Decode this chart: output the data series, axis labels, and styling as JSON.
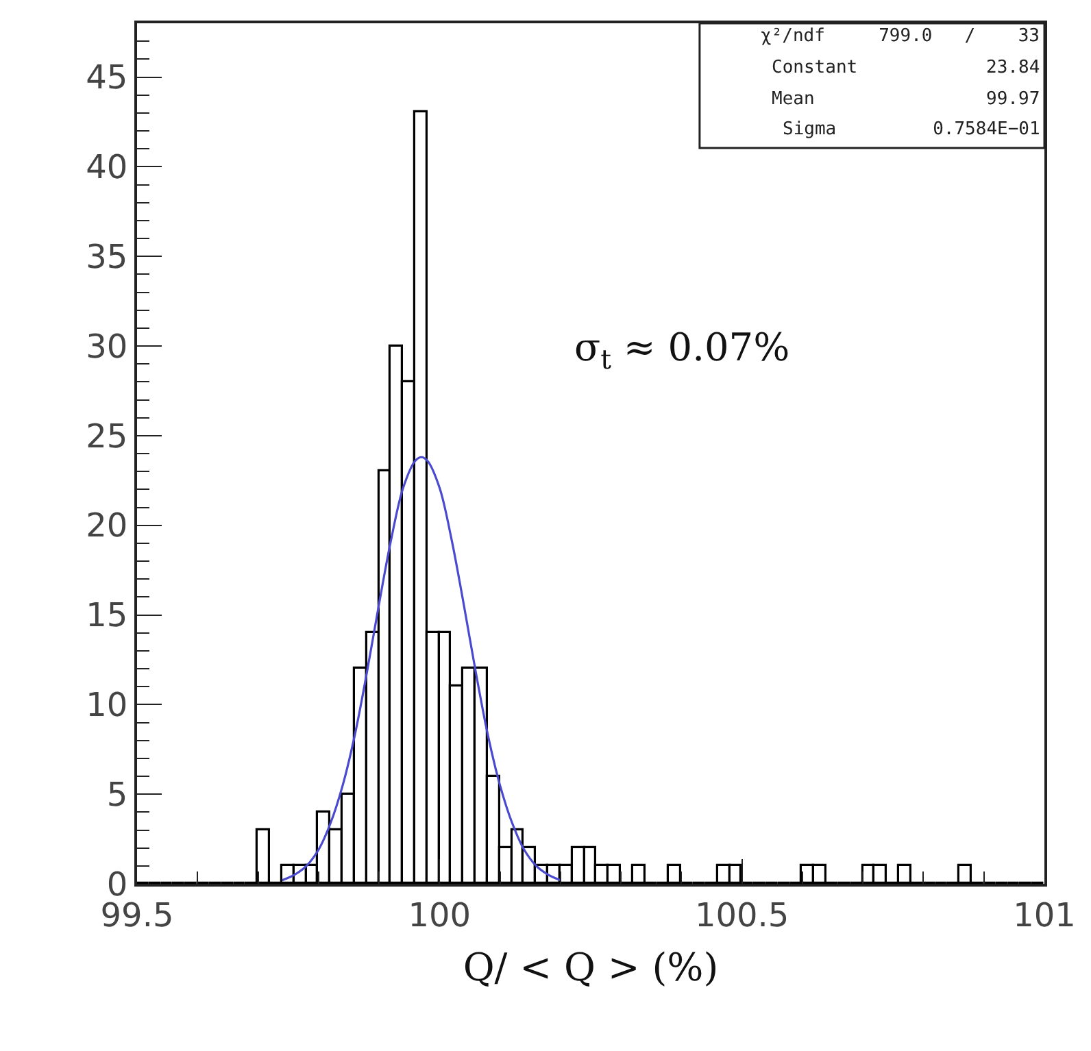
{
  "chart_data": {
    "type": "histogram",
    "xlabel": "Q/ < Q > (%)",
    "xlim": [
      99.5,
      101
    ],
    "xticks": [
      99.5,
      100,
      100.5,
      101
    ],
    "ylim": [
      0,
      48
    ],
    "yticks": [
      0,
      5,
      10,
      15,
      20,
      25,
      30,
      35,
      40,
      45
    ],
    "annotations": [
      "χ²/ndf     799.0   /    33",
      "Constant            23.84",
      "Mean                99.97",
      "Sigma         0.7584E−01",
      "σ$_{t}$ ≈ 0.07%"
    ],
    "series": [
      {
        "color": "#000000",
        "bins": [
          99.5,
          99.52,
          99.54,
          99.56,
          99.58,
          99.6,
          99.62,
          99.64,
          99.66,
          99.68,
          99.7,
          99.72,
          99.74,
          99.76,
          99.78,
          99.8,
          99.82,
          99.84,
          99.86,
          99.88,
          99.9,
          99.92,
          99.94,
          99.96,
          99.98,
          100.0,
          100.02,
          100.04,
          100.06,
          100.08,
          100.1,
          100.12,
          100.14,
          100.16,
          100.18,
          100.2,
          100.22,
          100.24,
          100.26,
          100.28,
          100.3,
          100.32,
          100.34,
          100.36,
          100.38,
          100.4,
          100.42,
          100.44,
          100.46,
          100.48,
          100.5,
          100.52,
          100.54,
          100.56,
          100.58,
          100.6,
          100.62,
          100.64,
          100.66,
          100.68,
          100.7,
          100.72,
          100.74,
          100.76,
          100.78,
          100.8,
          100.82,
          100.84,
          100.86,
          100.88,
          100.9,
          100.92,
          100.94,
          100.96,
          100.98,
          101.0
        ],
        "values": [
          0,
          0,
          0,
          0,
          0,
          0,
          0,
          0,
          0,
          0,
          3,
          0,
          1,
          1,
          1,
          4,
          3,
          5,
          12,
          14,
          23,
          30,
          28,
          43,
          14,
          14,
          11,
          12,
          12,
          6,
          2,
          3,
          2,
          1,
          1,
          1,
          2,
          2,
          1,
          1,
          0,
          1,
          0,
          0,
          1,
          0,
          0,
          0,
          1,
          1,
          0,
          0,
          0,
          0,
          0,
          1,
          1,
          0,
          0,
          0,
          1,
          1,
          0,
          1,
          0,
          0,
          0,
          0,
          1,
          0,
          0,
          0,
          0,
          0,
          0
        ]
      },
      {
        "type": "line",
        "color": "#4a4ad0",
        "x": [
          99.74,
          99.76,
          99.78,
          99.8,
          99.82,
          99.84,
          99.86,
          99.88,
          99.9,
          99.92,
          99.94,
          99.96,
          99.97,
          99.98,
          100.0,
          100.02,
          100.04,
          100.06,
          100.08,
          100.1,
          100.12,
          100.14,
          100.16,
          100.18,
          100.2
        ],
        "values": [
          0.2,
          0.5,
          1.0,
          1.9,
          3.4,
          5.5,
          8.3,
          11.8,
          15.6,
          19.2,
          22.1,
          23.6,
          23.8,
          23.6,
          22.1,
          19.2,
          15.6,
          11.8,
          8.3,
          5.5,
          3.4,
          1.9,
          1.0,
          0.5,
          0.2
        ]
      }
    ]
  }
}
